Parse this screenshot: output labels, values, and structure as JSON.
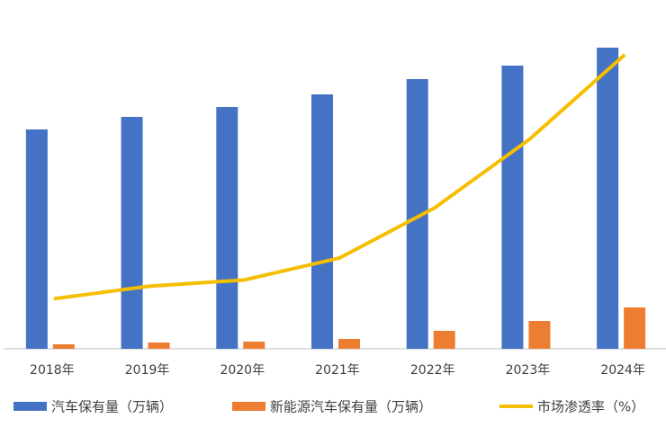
{
  "chart_data": {
    "type": "bar",
    "categories": [
      "2018年",
      "2019年",
      "2020年",
      "2021年",
      "2022年",
      "2023年",
      "2024年"
    ],
    "series": [
      {
        "name": "汽车保有量（万辆）",
        "type": "bar",
        "color": "#4472c4",
        "values": [
          24400,
          25800,
          26900,
          28300,
          30000,
          31500,
          33500
        ]
      },
      {
        "name": "新能源汽车保有量（万辆）",
        "type": "bar",
        "color": "#ed7d31",
        "values": [
          500,
          700,
          800,
          1100,
          2000,
          3100,
          4600
        ]
      },
      {
        "name": "市场渗透率（%）",
        "type": "line",
        "axis": "y2",
        "color": "#f5bf00",
        "values": [
          1.6,
          2.0,
          2.2,
          2.9,
          4.5,
          6.7,
          9.4
        ]
      }
    ],
    "ylim": [
      0,
      34800
    ],
    "y2lim": [
      0,
      10
    ],
    "grid": false,
    "legend": "bottom"
  }
}
